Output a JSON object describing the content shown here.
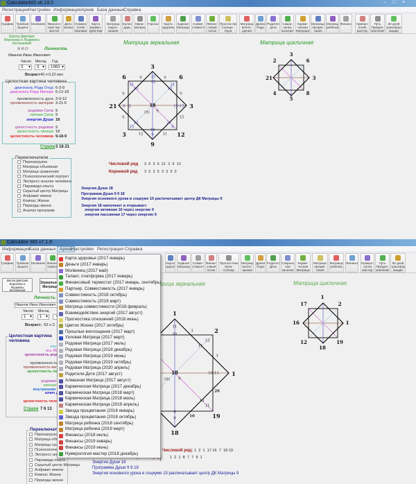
{
  "top_window": {
    "title": "CalculatorMS v8.19.0",
    "menu": [
      "Регистрация",
      "Настройки",
      "Информация",
      "Архив",
      "База данных",
      "Справка"
    ],
    "toolbar": [
      "Графики",
      "Тройная защита",
      "Молвинец",
      "Финансо-вый тер-мостат",
      "Дело жизни",
      "Нумеро-логия базовая",
      "Карта взаимо-действия",
      "Матрица подсо-знания",
      "Кален-дарь",
      "Мини-матрицы",
      "Гороскоп",
      "Карта здоровья",
      "Единая Матрица",
      "Совме-стимость",
      "Финан-совый поток",
      "Прогностика Солнце - Луна",
      "Матрица вопло-щения",
      "Древо Рода",
      "Родители дети",
      "Сакра-льное зачатие",
      "Карми-ческая Матрица",
      "Матрица процве-тания",
      "Матрица ребенка",
      "Финансы",
      "Нумеро-логия мастер",
      "Путь Предна-значения",
      "60 дней трансфор-мации"
    ],
    "school": "Школа Дмитрия Воронова и Людмилы Китаниевой",
    "fio_label": "Ф И О",
    "personality_label": "Личность",
    "name": "Иванов Иван Иванович",
    "day_label": "Число",
    "month_label": "Месяц",
    "year_label": "Год",
    "day": "3",
    "month": "3",
    "year": "1983",
    "age_label": "Возраст",
    "age": "40 л 0,22 мес",
    "whole_picture": {
      "title": "Целостная картина человека",
      "rows": [
        {
          "label": "диагональ Рода Отца",
          "value": "6-3-9",
          "color": "#1a3cc8"
        },
        {
          "label": "диагональ Рода Матери",
          "value": "6-12-18",
          "color": "#d02ad0"
        },
        {
          "label": "проявленность духа",
          "value": "3-9-12",
          "color": "#333"
        },
        {
          "label": "проявленность материи",
          "value": "3-21-6",
          "color": "#8a3030"
        },
        {
          "label": "родовая Сила",
          "value": "9",
          "color": "#a030a0"
        },
        {
          "label": "личная Сила",
          "value": "9",
          "color": "#30a030"
        },
        {
          "label": "энергия Души",
          "value": "18",
          "color": "#1a1ad0"
        },
        {
          "label": "целостность родовая",
          "value": "9",
          "color": "#a030a0"
        },
        {
          "label": "целостность личная",
          "value": "18",
          "color": "#30a030"
        },
        {
          "label": "целостность человека",
          "value": "9-18-9",
          "color": "#e02020"
        }
      ],
      "fears_label": "Страхи",
      "fears": "3 18 21"
    },
    "switches": {
      "title": "Переключатели",
      "items": [
        "Перезагрузка",
        "Матрица объемная",
        "Матрица сравнения",
        "Психологический портрет",
        "Экспресс-анализ человека",
        "Пирамида опыта",
        "Скрытый центр Матрицы",
        "Алфавит имени",
        "Компас Жизни",
        "Периоды жизни",
        "Анализ программ"
      ]
    },
    "mirror": {
      "title": "Матрица зеркальная",
      "outer": [
        "3",
        "6",
        "3",
        "12",
        "9",
        "3",
        "21",
        "6"
      ],
      "inner": [
        "15",
        "12",
        "9",
        "9",
        "21",
        "15",
        "21",
        "15",
        "9",
        "9",
        "6",
        "3",
        "12-15",
        "(9)",
        "9",
        "6",
        "15",
        "12",
        "15",
        "21",
        "6",
        "18",
        "9",
        "12",
        "21"
      ],
      "center": "18"
    },
    "cyclic": {
      "title": "Матрица цикличная",
      "outer": [
        "3",
        "6",
        "3",
        "8",
        "5",
        "4",
        "21",
        "2"
      ]
    },
    "number_row": {
      "label": "Числовой ряд",
      "values": "3  6  3  6  21  3  9  12"
    },
    "root_row": {
      "label": "Корневой ряд",
      "values": "3  6  3  6  3  3  9  3"
    },
    "info": [
      "Энергия Души  18",
      "Программа Души  9 9 18",
      "Энергия основного урока в социуме 15 распечатывает центр ДК Матрицы 9",
      "Энергия 18 наполняет и открывает:",
      "энергия активная 16 через энергию 9",
      "энергия пассивная 17 через энергию 9"
    ]
  },
  "bottom_window": {
    "title": "Calculator MS v7.1.8",
    "menu": [
      "Информация",
      "База данных",
      "Архив",
      "Настройки",
      "Регистрация",
      "Справка"
    ],
    "toolbar_left": [
      "Графики",
      "Тройная защита",
      "Молвинец",
      "Финансовый термостат"
    ],
    "toolbar_right": [
      "Карта здоровья",
      "Единая Матрица",
      "Совме-стимость",
      "Финан-совый поток",
      "Прогностика Луна-Солнце",
      "Матрица вопло-щения",
      "Древо Рода",
      "Родители Дети",
      "Сакраль-ное зачатие",
      "Карми-ческая Матрица",
      "Матрица процве-тания",
      "Матрица ребенка",
      "Финансы",
      "Нумеро-логия мастер",
      "Путь Предна-значения",
      "60 дней трансфор-мации"
    ],
    "school": "Школа Дмитрия Воронова и Людмилы Китаниевой",
    "mirror_button": "Зеркальная Матрица",
    "personality_label": "Личность",
    "name": "Иванов Иван Иванович",
    "day_label": "Число",
    "month_label": "Месяц",
    "day": "1",
    "month": "1",
    "age_label": "Возраст:",
    "age": "63 л 2.",
    "whole_picture": {
      "title": "Целостная картина человека",
      "rows": [
        {
          "label": "ось Отца",
          "color": "#20a0d0"
        },
        {
          "label": "ось Матери",
          "color": "#d02ad0"
        },
        {
          "label": "целостность родовая",
          "color": "#a030a0"
        },
        {
          "label": "проявленность духа",
          "color": "#333"
        },
        {
          "label": "проявленность материи",
          "color": "#8a3030"
        },
        {
          "label": "целостность личная",
          "color": "#30a030"
        },
        {
          "label": "родовая Сила",
          "color": "#a030a0"
        },
        {
          "label": "личная Сила",
          "color": "#30a030"
        },
        {
          "label": "внутренняя Сила",
          "color": "#1a6ad0"
        },
        {
          "label": "ключ Души",
          "color": "#1a1ad0"
        },
        {
          "label": "целостность человека",
          "color": "#e02020"
        }
      ],
      "fears_label": "Страхи",
      "fears": "7 6 13"
    },
    "switches": {
      "title": "Переключатели",
      "items": [
        "Перезагрузка",
        "Матрица объемная",
        "Матрицы сравнения",
        "Психологический портрет",
        "Экспресс-анализ",
        "Пирамида опыта",
        "Скрытый центр Матрицы",
        "Алфавит имени",
        "Компас Жизни",
        "Периоды жизни"
      ]
    },
    "archive_menu": [
      {
        "label": "Карта здоровья (2017 январь)",
        "color": "#e03030"
      },
      {
        "label": "Деньги (2017 январь)",
        "color": "#c08020"
      },
      {
        "label": "Молвинец (2017 май)",
        "color": "#8a6ad0"
      },
      {
        "label": "Талант, платформа (2017 январь)",
        "color": "#3a9a3a"
      },
      {
        "label": "Финансовый термостат (2017 январь, сентябрь)",
        "color": "#40b040"
      },
      {
        "label": "Партнер. Совместимость (2017 январь)",
        "color": "#d0a030"
      },
      {
        "label": "Совместимость (2018 октябрь)",
        "color": "#8090c0"
      },
      {
        "label": "Совместимость (2019 март)",
        "color": "#8090c0"
      },
      {
        "label": "Матрица совместимости (2018 февраль)",
        "color": "#c09040"
      },
      {
        "label": "Взаимодействие энергий (2017 август)",
        "color": "#6060b0"
      },
      {
        "label": "Прогностика отношений (2018 июнь)",
        "color": "#e0d060"
      },
      {
        "label": "Цветок Жизни (2017 октябрь)",
        "color": "#a0a040"
      },
      {
        "label": "Прошлые воплощения (2017 март)",
        "color": "#5070a0"
      },
      {
        "label": "Узловая Матрица (2017 март)",
        "color": "#3050c0"
      },
      {
        "label": "Родовая Матрица (2017 июль)",
        "color": "#b0b0c0"
      },
      {
        "label": "Родовая Матрица (2018 декабрь)",
        "color": "#b0b0c0"
      },
      {
        "label": "Родовая Матрица (2019 июнь)",
        "color": "#b0b0c0"
      },
      {
        "label": "Родовая Матрица (2019 октябрь)",
        "color": "#b0b0c0"
      },
      {
        "label": "Родовая Матрица (2020 апрель)",
        "color": "#b0b0c0"
      },
      {
        "label": "Родители-Дети (2017 август)",
        "color": "#c0a040"
      },
      {
        "label": "Алмазная Матрица (2017 август)",
        "color": "#5050a0"
      },
      {
        "label": "Кармическая Матрица (2017 декабрь)",
        "color": "#5050a0"
      },
      {
        "label": "Кармическая Матрица (2018 март)",
        "color": "#5050a0"
      },
      {
        "label": "Кармическая Матрица (2018 июль)",
        "color": "#5050a0"
      },
      {
        "label": "Кармическая Матрица (2019 апрель)",
        "color": "#c08080"
      },
      {
        "label": "Звезда процветания (2018 январь)",
        "color": "#d0d040"
      },
      {
        "label": "Звезда процветания (2018 октябрь)",
        "color": "#6060d0"
      },
      {
        "label": "Матрица ребенка (2018 сентябрь)",
        "color": "#c08030"
      },
      {
        "label": "Матрица ребенка (2019 март)",
        "color": "#c08030"
      },
      {
        "label": "Финансы (2018 июль)",
        "color": "#d04040"
      },
      {
        "label": "Финансы (2019 январь)",
        "color": "#d04040"
      },
      {
        "label": "Финансы (2019 июнь)",
        "color": "#d04040"
      },
      {
        "label": "Нумерология мастер (2018 декабрь)",
        "color": "#40a040"
      }
    ],
    "mirror": {
      "title": "Матрица зеркальная",
      "outer": [
        "1",
        "2",
        "1",
        "19",
        "18"
      ],
      "inner": [
        "11",
        "10",
        "3",
        "13",
        "11",
        "3",
        "(9)",
        "9",
        "10-11",
        "20",
        "10",
        "11",
        "9",
        "9",
        "10"
      ],
      "center": "18"
    },
    "cyclic": {
      "title": "Матрица цикличная",
      "outer": [
        "1",
        "2",
        "1",
        "19",
        "18",
        "12",
        "16",
        "17"
      ]
    },
    "number_row": {
      "label": "Числовой ряд:",
      "values": "1  2  1  17 16  7  18 19"
    },
    "root_row": {
      "label": "Корневой ряд:",
      "values": "1  2  1  8  7  7  9  1"
    },
    "info": [
      "Энергия Души 18",
      "Программа Души 9 9 18",
      "Энергия основного урока в социуме 15 распечатывает центр ДК Матрицы 9"
    ]
  }
}
